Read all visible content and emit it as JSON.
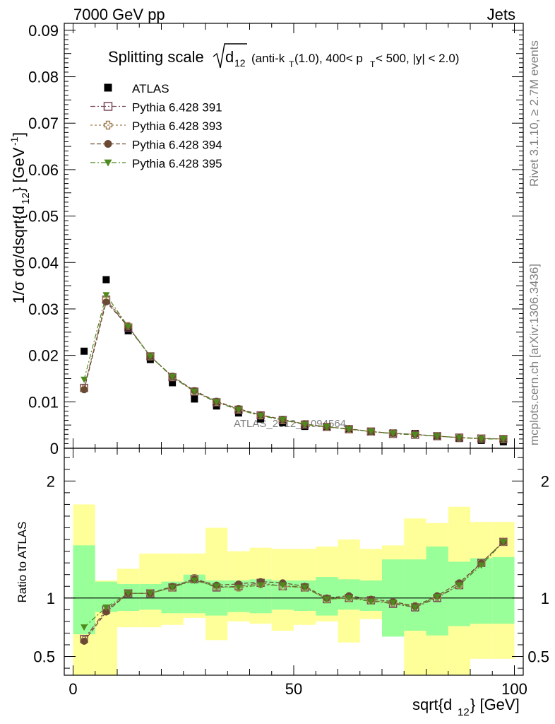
{
  "header": {
    "left": "7000 GeV pp",
    "right": "Jets"
  },
  "side_text": {
    "rivet": "Rivet 3.1.10, ≥ 2.7M events",
    "mcplots": "mcplots.cern.ch [arXiv:1306.3436]"
  },
  "watermark": "ATLAS_2012_I1094564",
  "chart_data": [
    {
      "type": "scatter",
      "title_main": "Splitting scale",
      "title_sub": "(anti-k",
      "title_rest": "(1.0), 400< p",
      "title_end": " < 500, |y| < 2.0)",
      "ylabel": "1/σ dσ/dsqrt{d",
      "ylabel_unit": "} [GeV",
      "ylim": [
        0,
        0.0915
      ],
      "xlim": [
        -2,
        102
      ],
      "y_ticks": [
        "0",
        "0.01",
        "0.02",
        "0.03",
        "0.04",
        "0.05",
        "0.06",
        "0.07",
        "0.08",
        "0.09"
      ],
      "x": [
        2.5,
        7.5,
        12.5,
        17.5,
        22.5,
        27.5,
        32.5,
        37.5,
        42.5,
        47.5,
        52.5,
        57.5,
        62.5,
        67.5,
        72.5,
        77.5,
        82.5,
        87.5,
        92.5,
        97.5
      ],
      "legend": [
        {
          "name": "ATLAS",
          "marker": "square-filled",
          "color": "#000000"
        },
        {
          "name": "Pythia 6.428 391",
          "marker": "square-open",
          "color": "#7b4a5a"
        },
        {
          "name": "Pythia 6.428 393",
          "marker": "cross-open",
          "color": "#a08050"
        },
        {
          "name": "Pythia 6.428 394",
          "marker": "circle-filled",
          "color": "#6b4a33"
        },
        {
          "name": "Pythia 6.428 395",
          "marker": "triangle-down",
          "color": "#4f8a1e"
        }
      ],
      "series": [
        {
          "name": "ATLAS",
          "values": [
            0.0209,
            0.0363,
            0.0253,
            0.0191,
            0.0141,
            0.0106,
            0.0091,
            0.0076,
            0.0063,
            0.0055,
            0.0047,
            0.0046,
            0.0042,
            0.0037,
            0.0033,
            0.0032,
            0.0026,
            0.0021,
            0.0017,
            0.0014
          ]
        },
        {
          "name": "Pythia 6.428 391",
          "values": [
            0.013,
            0.032,
            0.026,
            0.0198,
            0.0153,
            0.0122,
            0.0099,
            0.0083,
            0.0071,
            0.0061,
            0.0051,
            0.0046,
            0.0041,
            0.0036,
            0.0031,
            0.0029,
            0.0026,
            0.0023,
            0.0021,
            0.002
          ]
        },
        {
          "name": "Pythia 6.428 393",
          "values": [
            0.0128,
            0.0322,
            0.0263,
            0.0198,
            0.0154,
            0.0123,
            0.01,
            0.0084,
            0.0071,
            0.0061,
            0.0052,
            0.0046,
            0.0041,
            0.0036,
            0.0032,
            0.003,
            0.0026,
            0.0023,
            0.0021,
            0.002
          ]
        },
        {
          "name": "Pythia 6.428 394",
          "values": [
            0.0126,
            0.0315,
            0.0262,
            0.0198,
            0.0155,
            0.0124,
            0.0101,
            0.0085,
            0.0072,
            0.0062,
            0.0052,
            0.0046,
            0.0042,
            0.0036,
            0.0032,
            0.003,
            0.0026,
            0.0023,
            0.0021,
            0.002
          ]
        },
        {
          "name": "Pythia 6.428 395",
          "values": [
            0.0148,
            0.033,
            0.0262,
            0.0198,
            0.0154,
            0.0122,
            0.01,
            0.0083,
            0.007,
            0.0061,
            0.0051,
            0.0046,
            0.0041,
            0.0036,
            0.0032,
            0.0029,
            0.0026,
            0.0023,
            0.002,
            0.002
          ]
        }
      ]
    },
    {
      "type": "scatter",
      "ylabel": "Ratio to ATLAS",
      "xlabel": "sqrt{d",
      "xlabel_unit": "} [GeV]",
      "ylim": [
        0.34,
        2.28
      ],
      "xlim": [
        -2,
        102
      ],
      "y_ticks": [
        "0.5",
        "1",
        "2"
      ],
      "x_ticks": [
        "0",
        "50",
        "100"
      ],
      "bins": [
        [
          0,
          5
        ],
        [
          5,
          10
        ],
        [
          10,
          15
        ],
        [
          15,
          20
        ],
        [
          20,
          25
        ],
        [
          25,
          30
        ],
        [
          30,
          35
        ],
        [
          35,
          40
        ],
        [
          40,
          45
        ],
        [
          45,
          50
        ],
        [
          50,
          55
        ],
        [
          55,
          60
        ],
        [
          60,
          65
        ],
        [
          65,
          70
        ],
        [
          70,
          75
        ],
        [
          75,
          80
        ],
        [
          80,
          85
        ],
        [
          85,
          90
        ],
        [
          90,
          95
        ],
        [
          95,
          100
        ]
      ],
      "band_inner": [
        [
          0.69,
          1.45
        ],
        [
          0.88,
          1.14
        ],
        [
          0.89,
          1.12
        ],
        [
          0.9,
          1.12
        ],
        [
          0.87,
          1.14
        ],
        [
          0.87,
          1.2
        ],
        [
          0.85,
          1.15
        ],
        [
          0.88,
          1.15
        ],
        [
          0.87,
          1.16
        ],
        [
          0.9,
          1.15
        ],
        [
          0.89,
          1.15
        ],
        [
          0.85,
          1.18
        ],
        [
          0.9,
          1.16
        ],
        [
          0.89,
          1.15
        ],
        [
          0.67,
          1.33
        ],
        [
          0.72,
          1.33
        ],
        [
          0.68,
          1.44
        ],
        [
          0.76,
          1.31
        ],
        [
          0.78,
          1.34
        ],
        [
          0.78,
          1.35
        ]
      ],
      "band_outer": [
        [
          0.34,
          1.8
        ],
        [
          0.34,
          1.15
        ],
        [
          0.75,
          1.25
        ],
        [
          0.75,
          1.38
        ],
        [
          0.77,
          1.38
        ],
        [
          0.83,
          1.38
        ],
        [
          0.64,
          1.6
        ],
        [
          0.8,
          1.4
        ],
        [
          0.78,
          1.43
        ],
        [
          0.72,
          1.42
        ],
        [
          0.77,
          1.42
        ],
        [
          0.8,
          1.44
        ],
        [
          0.62,
          1.5
        ],
        [
          0.82,
          1.42
        ],
        [
          0.79,
          1.45
        ],
        [
          0.34,
          1.68
        ],
        [
          0.34,
          1.64
        ],
        [
          0.34,
          1.78
        ],
        [
          0.48,
          1.65
        ],
        [
          0.48,
          1.65
        ]
      ],
      "series": [
        {
          "name": "Pythia 6.428 391",
          "values": [
            0.65,
            0.9,
            1.04,
            1.04,
            1.09,
            1.16,
            1.09,
            1.1,
            1.13,
            1.1,
            1.09,
            0.99,
            1.0,
            0.98,
            0.95,
            0.92,
            1.0,
            1.11,
            1.3,
            1.48
          ]
        },
        {
          "name": "Pythia 6.428 393",
          "values": [
            0.64,
            0.89,
            1.04,
            1.04,
            1.09,
            1.17,
            1.1,
            1.09,
            1.12,
            1.1,
            1.09,
            0.99,
            1.0,
            0.98,
            0.96,
            0.93,
            1.01,
            1.11,
            1.3,
            1.48
          ]
        },
        {
          "name": "Pythia 6.428 394",
          "values": [
            0.63,
            0.88,
            1.04,
            1.04,
            1.1,
            1.16,
            1.11,
            1.12,
            1.14,
            1.13,
            1.1,
            1.0,
            1.02,
            0.99,
            0.97,
            0.93,
            1.02,
            1.13,
            1.3,
            1.48
          ]
        },
        {
          "name": "Pythia 6.428 395",
          "values": [
            0.75,
            0.92,
            1.04,
            1.04,
            1.09,
            1.15,
            1.1,
            1.09,
            1.11,
            1.11,
            1.09,
            0.99,
            1.0,
            0.97,
            0.96,
            0.92,
            1.01,
            1.11,
            1.28,
            1.48
          ]
        }
      ]
    }
  ]
}
